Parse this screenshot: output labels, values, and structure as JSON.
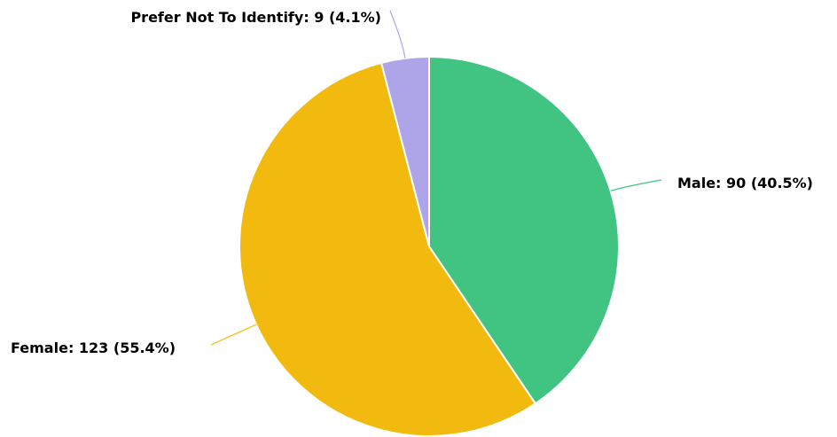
{
  "chart_data": {
    "type": "pie",
    "title": "",
    "slices": [
      {
        "label": "Male",
        "value": 90,
        "percent": "40.5%",
        "color": "#41c482",
        "display": "Male: 90 (40.5%)"
      },
      {
        "label": "Female",
        "value": 123,
        "percent": "55.4%",
        "color": "#f2b90e",
        "display": "Female: 123 (55.4%)"
      },
      {
        "label": "Prefer Not To Identify",
        "value": 9,
        "percent": "4.1%",
        "color": "#ada5e8",
        "display": "Prefer Not To Identify: 9 (4.1%)"
      }
    ],
    "start_angle_deg": 0,
    "direction": "clockwise",
    "legend": "none"
  }
}
